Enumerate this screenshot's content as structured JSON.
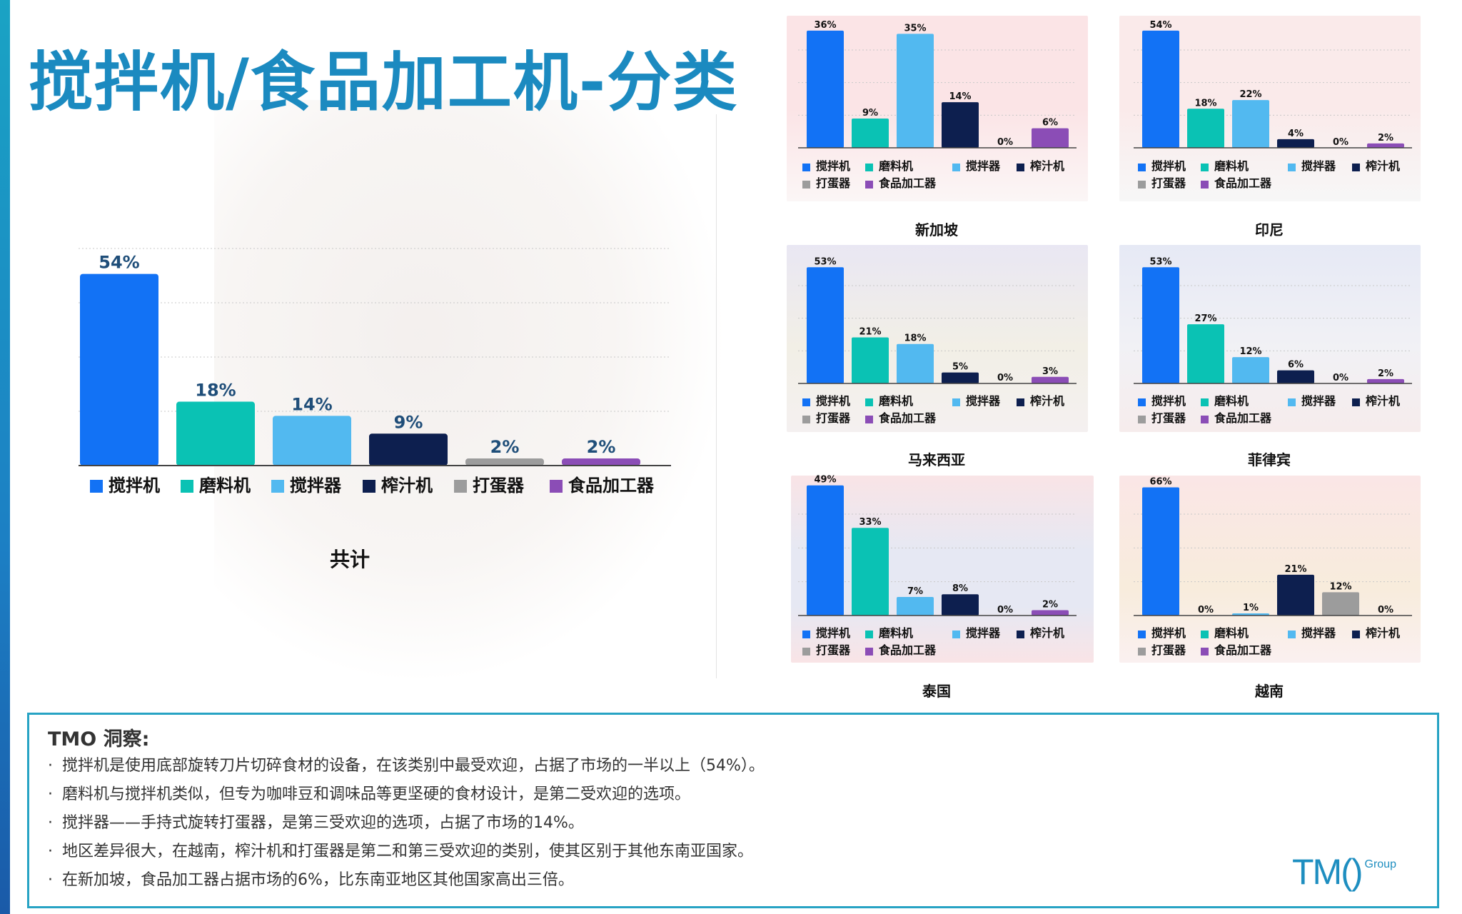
{
  "title": "搅拌机/食品加工机-分类",
  "colors": [
    "#1272f5",
    "#0ac2b4",
    "#52b9f0",
    "#0d1f4f",
    "#9c9c9c",
    "#8b4db6"
  ],
  "legend": [
    "搅拌机",
    "磨料机",
    "搅拌器",
    "榨汁机",
    "打蛋器",
    "食品加工器"
  ],
  "chart_data": [
    {
      "type": "bar",
      "title": "共计",
      "categories": [
        "搅拌机",
        "磨料机",
        "搅拌器",
        "榨汁机",
        "打蛋器",
        "食品加工器"
      ],
      "values": [
        54,
        18,
        14,
        9,
        2,
        2
      ],
      "labels": [
        "54%",
        "18%",
        "14%",
        "9%",
        "2%",
        "2%"
      ],
      "ylim": [
        0,
        60
      ],
      "grid": true,
      "legend": "bottom"
    },
    {
      "type": "bar",
      "title": "新加坡",
      "categories": [
        "搅拌机",
        "磨料机",
        "搅拌器",
        "榨汁机",
        "打蛋器",
        "食品加工器"
      ],
      "values": [
        36,
        9,
        35,
        14,
        0,
        6
      ],
      "labels": [
        "36%",
        "9%",
        "35%",
        "14%",
        "0%",
        "6%"
      ],
      "ylim": [
        0,
        40
      ],
      "grid": true,
      "legend": "bottom"
    },
    {
      "type": "bar",
      "title": "印尼",
      "categories": [
        "搅拌机",
        "磨料机",
        "搅拌器",
        "榨汁机",
        "打蛋器",
        "食品加工器"
      ],
      "values": [
        54,
        18,
        22,
        4,
        0,
        2
      ],
      "labels": [
        "54%",
        "18%",
        "22%",
        "4%",
        "0%",
        "2%"
      ],
      "ylim": [
        0,
        60
      ],
      "grid": true,
      "legend": "bottom"
    },
    {
      "type": "bar",
      "title": "马来西亚",
      "categories": [
        "搅拌机",
        "磨料机",
        "搅拌器",
        "榨汁机",
        "打蛋器",
        "食品加工器"
      ],
      "values": [
        53,
        21,
        18,
        5,
        0,
        3
      ],
      "labels": [
        "53%",
        "21%",
        "18%",
        "5%",
        "0%",
        "3%"
      ],
      "ylim": [
        0,
        60
      ],
      "grid": true,
      "legend": "bottom"
    },
    {
      "type": "bar",
      "title": "菲律宾",
      "categories": [
        "搅拌机",
        "磨料机",
        "搅拌器",
        "榨汁机",
        "打蛋器",
        "食品加工器"
      ],
      "values": [
        53,
        27,
        12,
        6,
        0,
        2
      ],
      "labels": [
        "53%",
        "27%",
        "12%",
        "6%",
        "0%",
        "2%"
      ],
      "ylim": [
        0,
        60
      ],
      "grid": true,
      "legend": "bottom"
    },
    {
      "type": "bar",
      "title": "泰国",
      "categories": [
        "搅拌机",
        "磨料机",
        "搅拌器",
        "榨汁机",
        "打蛋器",
        "食品加工器"
      ],
      "values": [
        49,
        33,
        7,
        8,
        0,
        2
      ],
      "labels": [
        "49%",
        "33%",
        "7%",
        "8%",
        "0%",
        "2%"
      ],
      "ylim": [
        0,
        55
      ],
      "grid": true,
      "legend": "bottom"
    },
    {
      "type": "bar",
      "title": "越南",
      "categories": [
        "搅拌机",
        "磨料机",
        "搅拌器",
        "榨汁机",
        "打蛋器",
        "食品加工器"
      ],
      "values": [
        66,
        0,
        1,
        21,
        12,
        0
      ],
      "labels": [
        "66%",
        "0%",
        "1%",
        "21%",
        "12%",
        "0%"
      ],
      "ylim": [
        0,
        70
      ],
      "grid": true,
      "legend": "bottom"
    }
  ],
  "insight": {
    "heading": "TMO 洞察:",
    "items": [
      "搅拌机是使用底部旋转刀片切碎食材的设备，在该类别中最受欢迎，占据了市场的一半以上（54%）。",
      "磨料机与搅拌机类似，但专为咖啡豆和调味品等更坚硬的食材设计，是第二受欢迎的选项。",
      "搅拌器——手持式旋转打蛋器，是第三受欢迎的选项，占据了市场的14%。",
      "地区差异很大，在越南，榨汁机和打蛋器是第二和第三受欢迎的类别，使其区别于其他东南亚国家。",
      "在新加坡，食品加工器占据市场的6%，比东南亚地区其他国家高出三倍。"
    ],
    "bullet": "·"
  },
  "logo": {
    "main": "TM()",
    "sub": "Group"
  }
}
